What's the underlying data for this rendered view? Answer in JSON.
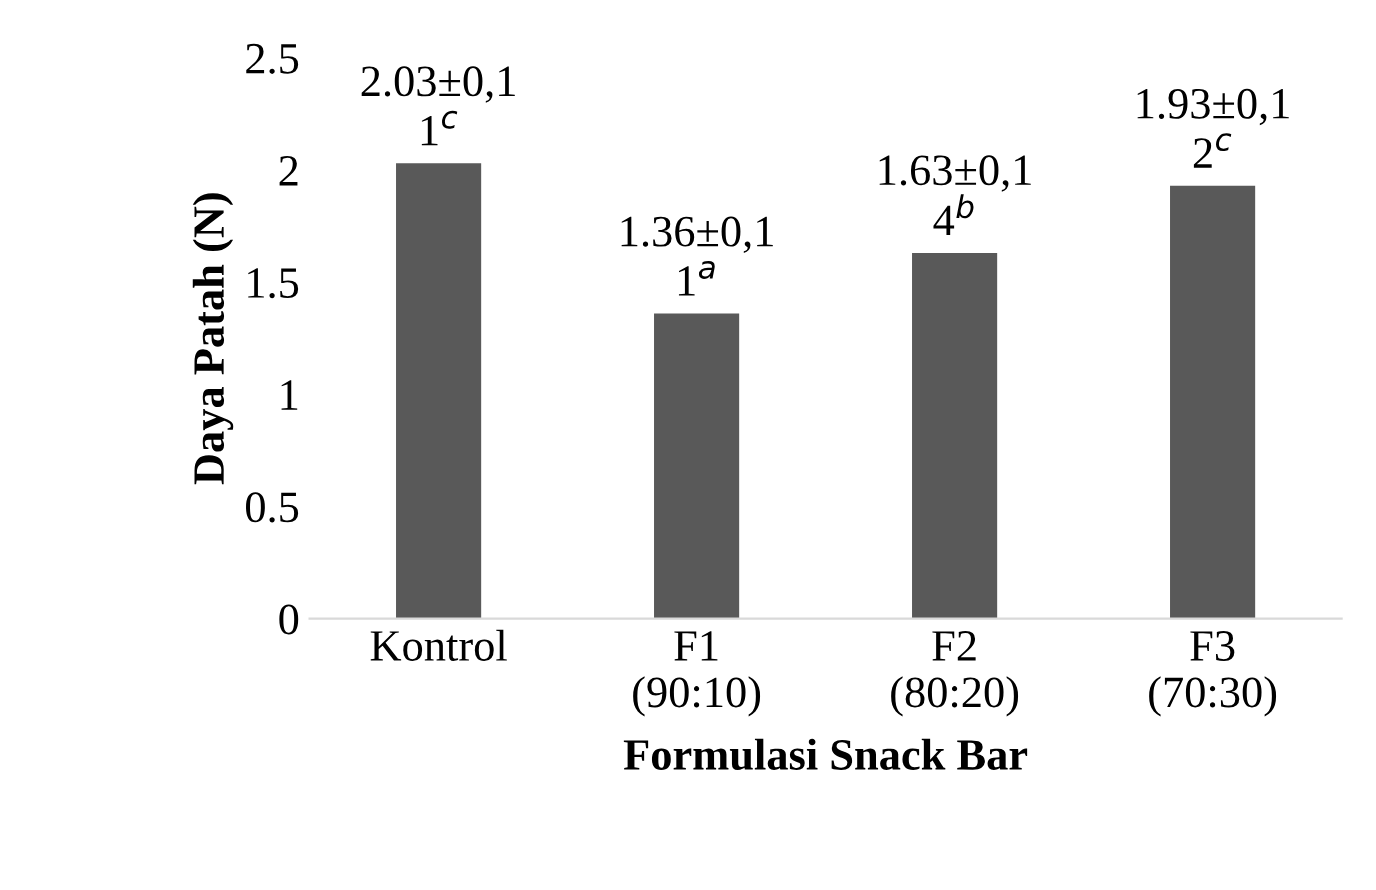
{
  "chart_data": {
    "type": "bar",
    "xlabel": "Formulasi Snack Bar",
    "ylabel": "Daya Patah (N)",
    "categories": [
      "Kontrol",
      "F1\n(90:10)",
      "F2\n(80:20)",
      "F3\n(70:30)"
    ],
    "values": [
      2.03,
      1.36,
      1.63,
      1.93
    ],
    "value_labels": [
      "2.03±0,1\n1$^{c}$",
      "1.36±0,1\n1$^{a}$",
      "1.63±0,1\n4$^{b}$",
      "1.93±0,1\n2$^{c}$"
    ],
    "color": "#595959",
    "ylim": [
      0,
      2.5
    ],
    "yticks": [
      0,
      {
        "value": 0.5,
        "label": "0.5"
      },
      1,
      {
        "value": 1.5,
        "label": "1.5"
      },
      2,
      {
        "value": 2.5,
        "label": "2.5"
      }
    ],
    "grid": false,
    "legend": false
  }
}
